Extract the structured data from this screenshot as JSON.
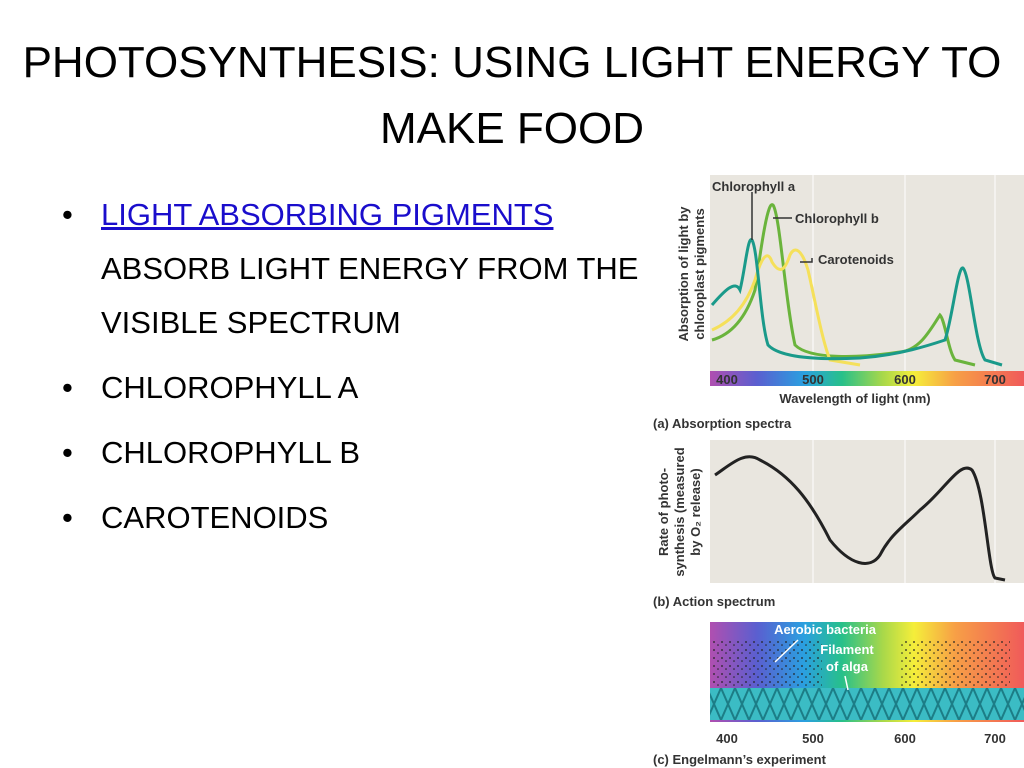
{
  "title": "PHOTOSYNTHESIS: USING LIGHT ENERGY TO MAKE FOOD",
  "bullets": [
    {
      "link": "LIGHT ABSORBING PIGMENTS",
      "text": "ABSORB LIGHT ENERGY FROM THE VISIBLE SPECTRUM"
    },
    {
      "text": "CHLOROPHYLL A"
    },
    {
      "text": "CHLOROPHYLL B"
    },
    {
      "text": "CAROTENOIDS"
    }
  ],
  "figure": {
    "panel_a": {
      "y_label": [
        "Absorption of light by",
        "chloroplast pigments"
      ],
      "legend": [
        "Chlorophyll a",
        "Chlorophyll b",
        "Carotenoids"
      ],
      "ticks": [
        400,
        500,
        600,
        700
      ],
      "x_label": "Wavelength of light (nm)",
      "caption": "(a) Absorption spectra"
    },
    "panel_b": {
      "y_label": [
        "Rate of photo-",
        "synthesis (measured",
        "by O₂ release)"
      ],
      "caption": "(b) Action spectrum"
    },
    "panel_c": {
      "labels": [
        "Aerobic bacteria",
        "Filament",
        "of alga"
      ],
      "ticks": [
        400,
        500,
        600,
        700
      ],
      "caption": "(c) Engelmann’s experiment"
    }
  }
}
